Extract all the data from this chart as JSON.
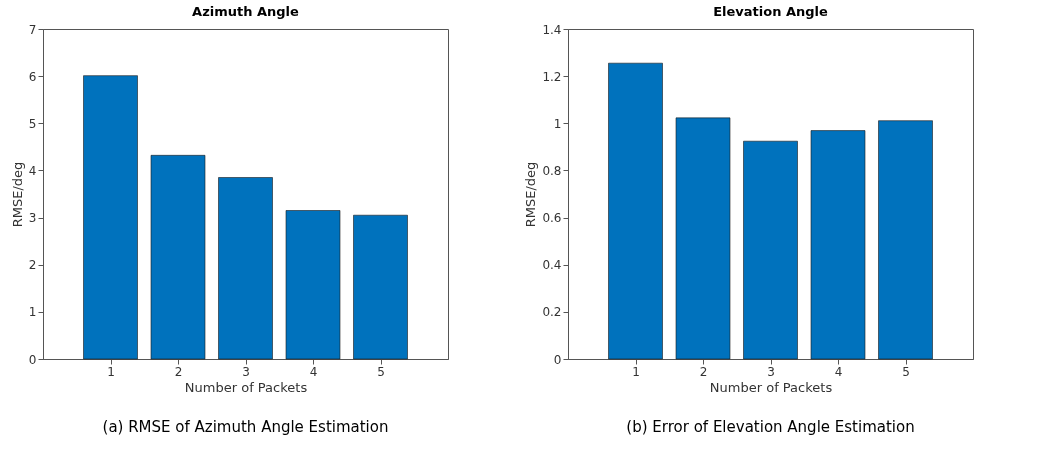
{
  "chart_data": [
    {
      "type": "bar",
      "title": "Azimuth Angle",
      "xlabel": "Number of Packets",
      "ylabel": "RMSE/deg",
      "x": [
        1,
        2,
        3,
        4,
        5
      ],
      "values": [
        6.01,
        4.32,
        3.85,
        3.15,
        3.05
      ],
      "color": "#0072bd",
      "xlim": [
        0,
        6
      ],
      "xticks": [
        1,
        2,
        3,
        4,
        5
      ],
      "ylim": [
        0,
        7
      ],
      "yticks": [
        0,
        1,
        2,
        3,
        4,
        5,
        6,
        7
      ],
      "grid": false,
      "annotations": [
        "(a) RMSE of Azimuth Angle Estimation"
      ]
    },
    {
      "type": "bar",
      "title": "Elevation Angle",
      "xlabel": "Number of Packets",
      "ylabel": "RMSE/deg",
      "x": [
        1,
        2,
        3,
        4,
        5
      ],
      "values": [
        1.255,
        1.023,
        0.924,
        0.969,
        1.011
      ],
      "color": "#0072bd",
      "xlim": [
        0,
        6
      ],
      "xticks": [
        1,
        2,
        3,
        4,
        5
      ],
      "ylim": [
        0,
        1.4
      ],
      "yticks": [
        0,
        0.2,
        0.4,
        0.6,
        0.8,
        1,
        1.2,
        1.4
      ],
      "grid": false,
      "annotations": [
        "(b) Error of Elevation Angle Estimation"
      ]
    }
  ]
}
